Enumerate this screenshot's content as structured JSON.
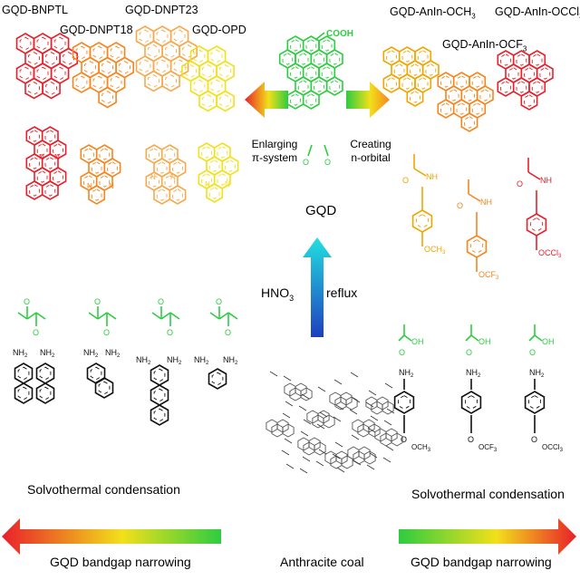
{
  "colors": {
    "red": "#e8202a",
    "orange": "#f5861f",
    "light_orange": "#f6a94d",
    "yellow": "#f2e01a",
    "green": "#2ecc40",
    "amber": "#f0a500",
    "black": "#111111"
  },
  "labels": {
    "bnptl": "GQD-BNPTL",
    "dnpt18": "GQD-DNPT18",
    "dnpt23": "GQD-DNPT23",
    "opd": "GQD-OPD",
    "anln_och3": "GQD-AnIn-OCH",
    "anln_och3_sub": "3",
    "anln_occl3": "GQD-AnIn-OCCl",
    "anln_occl3_sub": "3",
    "anln_ocf3": "GQD-AnIn-OCF",
    "anln_ocf3_sub": "3",
    "cooh": "COOH",
    "enlarging_1": "Enlarging",
    "enlarging_2": "π-system",
    "creating_1": "Creating",
    "creating_2": "n-orbital",
    "gqd": "GQD",
    "hno": "HNO",
    "hno_sub": "3",
    "reflux": "reflux",
    "solvo_left": "Solvothermal condensation",
    "solvo_right": "Solvothermal condensation",
    "bandgap_left": "GQD bandgap narrowing",
    "bandgap_right": "GQD bandgap narrowing",
    "anthracite": "Anthracite coal",
    "nh": "NH",
    "nh2": "NH",
    "nh2_sub": "2",
    "oh": "OH",
    "och3": "OCH",
    "ocf3": "OCF",
    "occl3": "OCCl",
    "sub3": "3",
    "n": "N",
    "o": "O"
  }
}
